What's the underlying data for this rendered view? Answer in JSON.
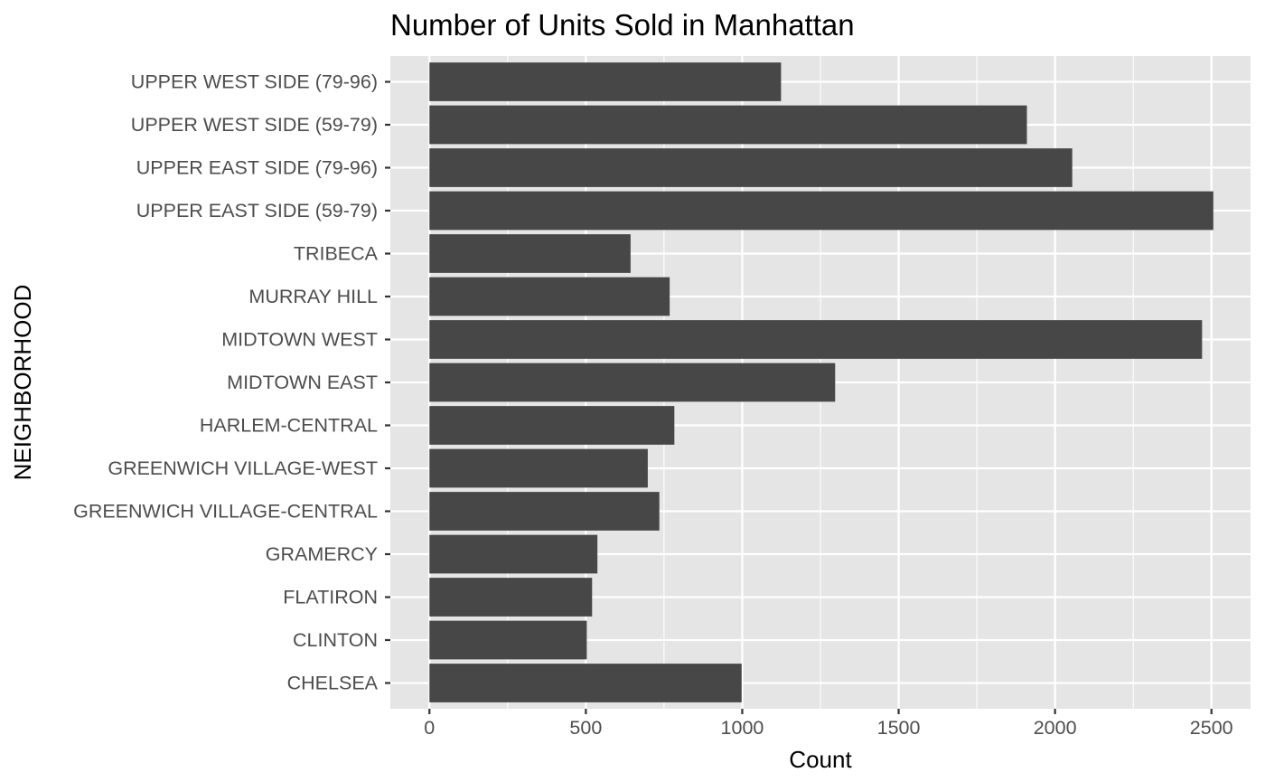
{
  "chart_data": {
    "type": "bar",
    "orientation": "horizontal",
    "title": "Number of Units Sold in Manhattan",
    "xlabel": "Count",
    "ylabel": "NEIGHBORHOOD",
    "categories": [
      "CHELSEA",
      "CLINTON",
      "FLATIRON",
      "GRAMERCY",
      "GREENWICH VILLAGE-CENTRAL",
      "GREENWICH VILLAGE-WEST",
      "HARLEM-CENTRAL",
      "MIDTOWN EAST",
      "MIDTOWN WEST",
      "MURRAY HILL",
      "TRIBECA",
      "UPPER EAST SIDE (59-79)",
      "UPPER EAST SIDE (79-96)",
      "UPPER WEST SIDE (59-79)",
      "UPPER WEST SIDE (79-96)"
    ],
    "values": [
      998,
      503,
      520,
      537,
      735,
      698,
      783,
      1297,
      2470,
      768,
      643,
      2506,
      2055,
      1910,
      1124
    ],
    "xlim": [
      -125,
      2625
    ],
    "xticks": [
      0,
      500,
      1000,
      1500,
      2000,
      2500
    ],
    "xtick_labels": [
      "0",
      "500",
      "1000",
      "1500",
      "2000",
      "2500"
    ],
    "grid": true,
    "colors": {
      "bar": "#474747",
      "panel": "#e5e5e5",
      "grid": "#ffffff",
      "tick_text": "#4d4d4d",
      "tick_mark": "#333333"
    }
  }
}
